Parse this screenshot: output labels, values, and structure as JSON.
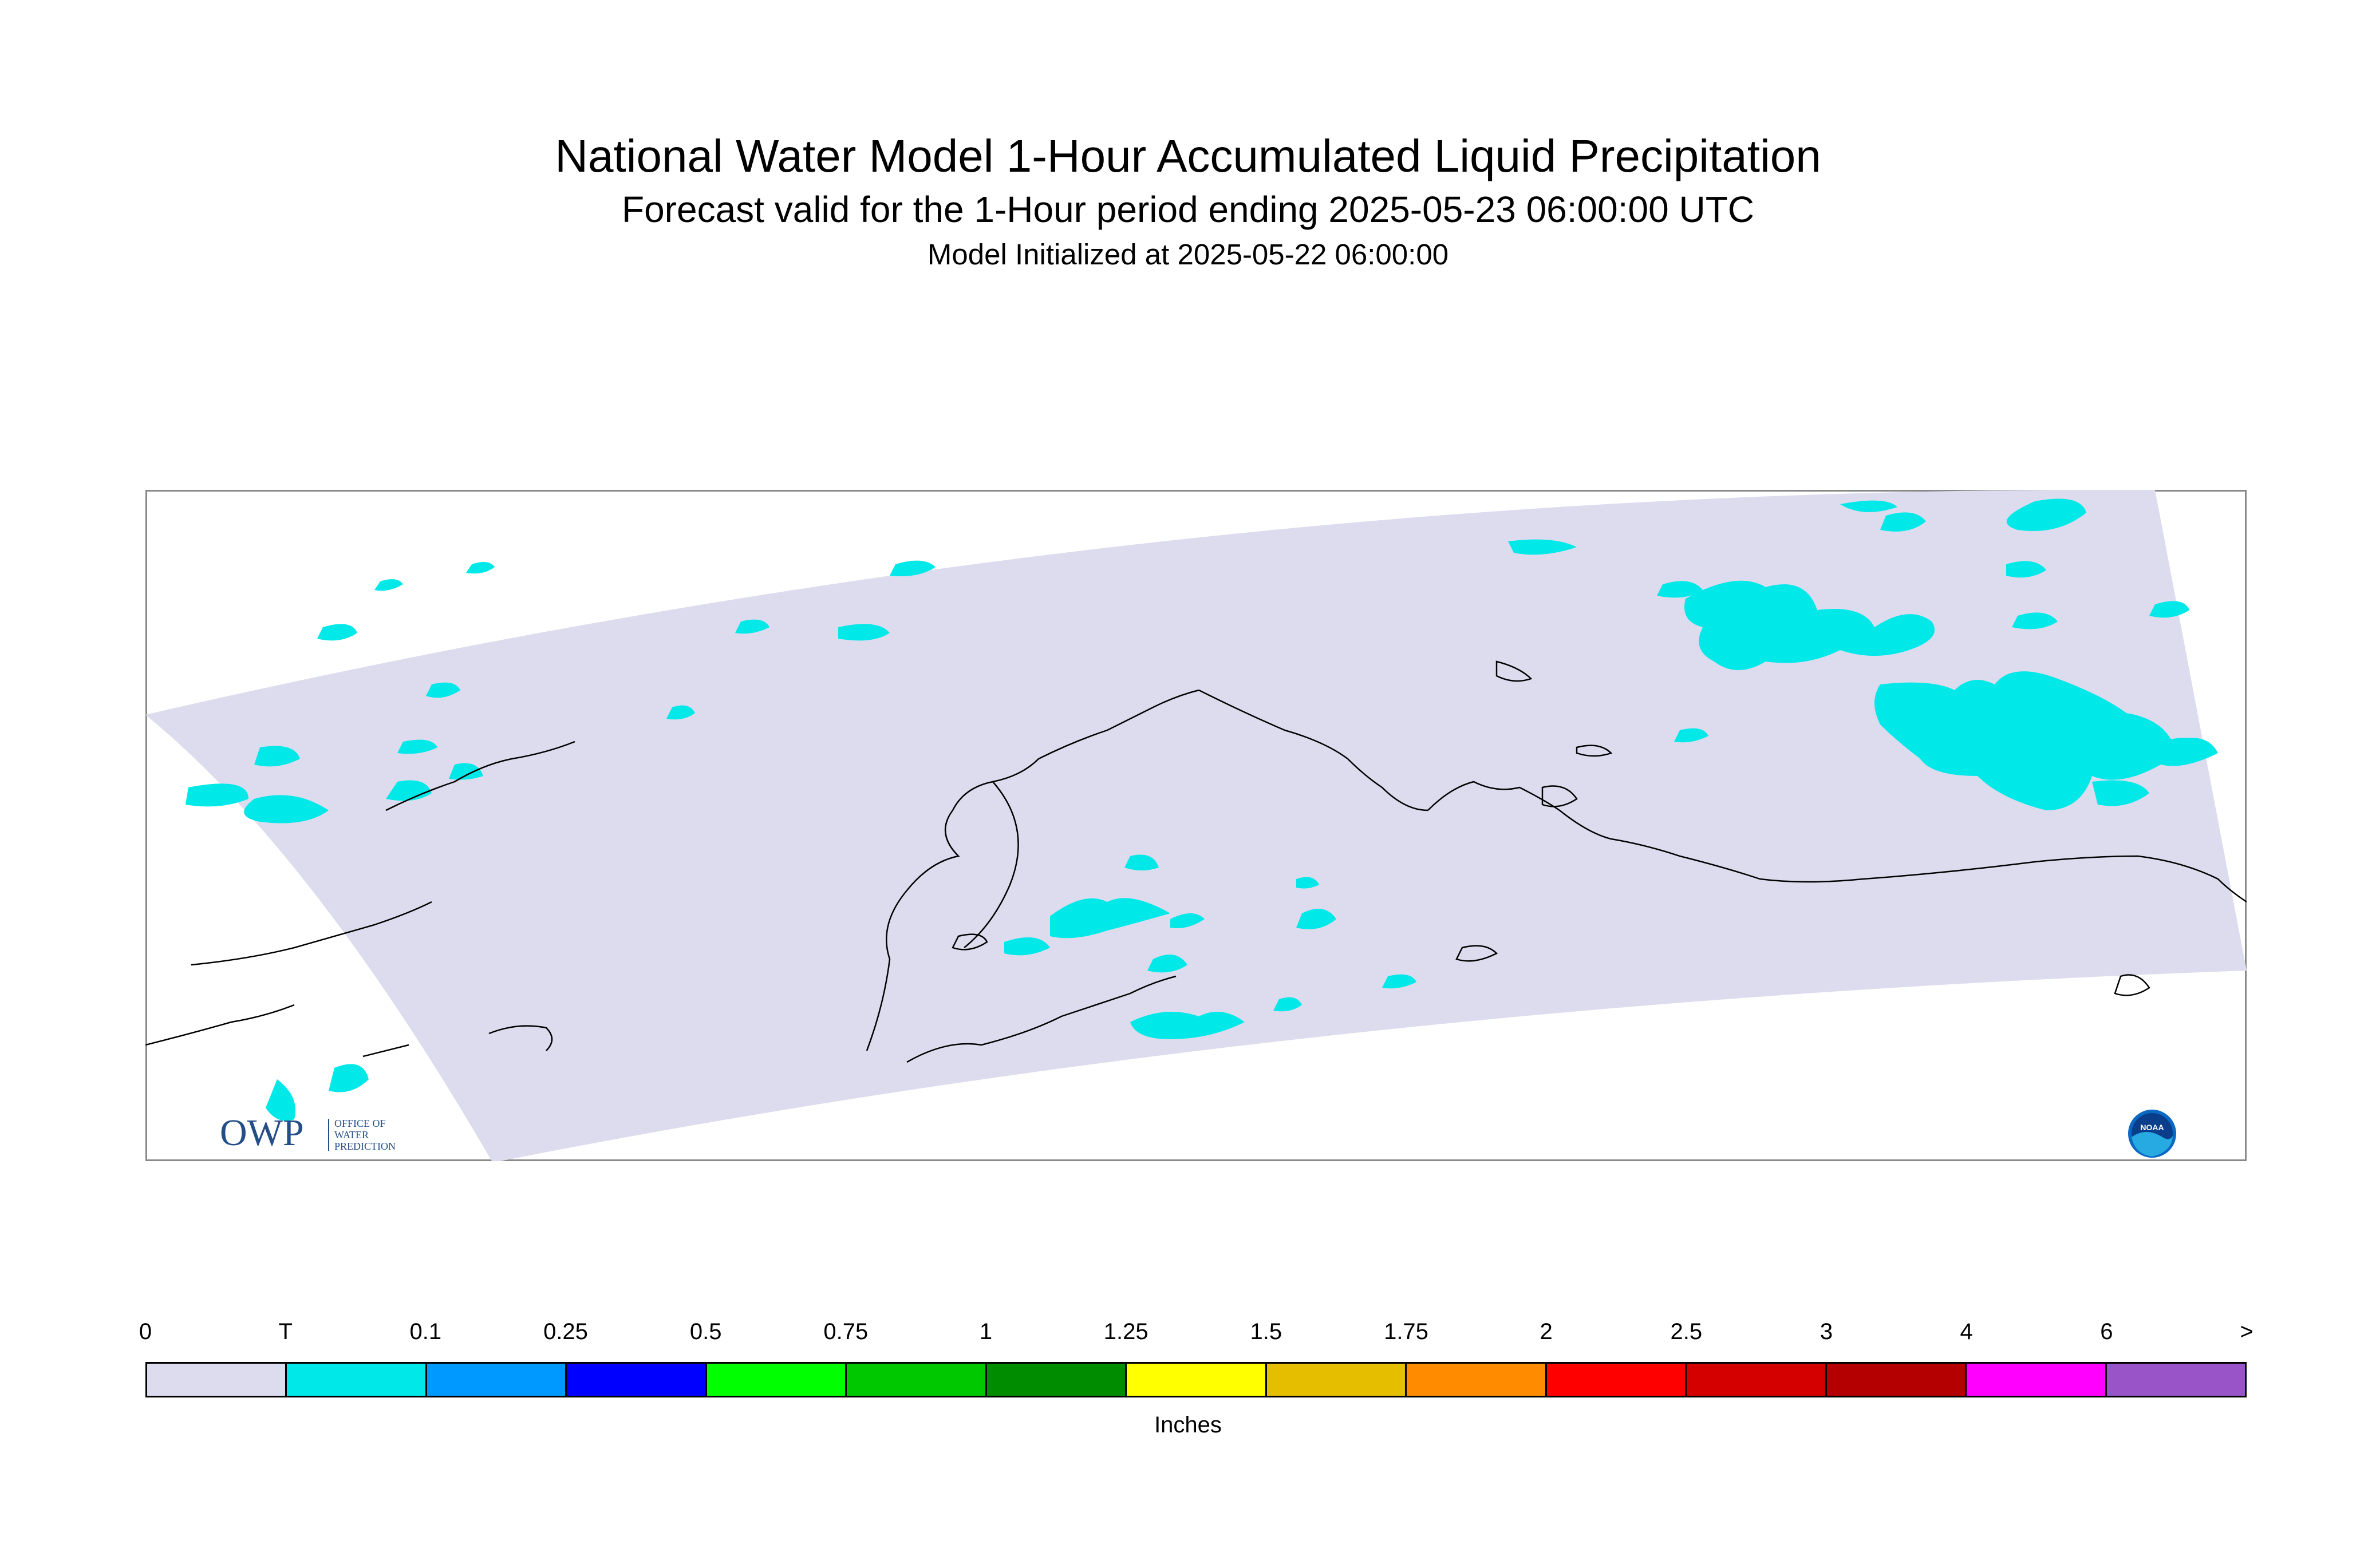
{
  "title": "National Water Model 1-Hour Accumulated Liquid Precipitation",
  "subtitle": "Forecast valid for the 1-Hour period ending 2025-05-23 06:00:00 UTC",
  "init_line": "Model Initialized at 2025-05-22 06:00:00",
  "logos": {
    "owp_mark": "OWP",
    "owp_sub": [
      "OFFICE OF",
      "WATER",
      "PREDICTION"
    ],
    "noaa": "NOAA"
  },
  "legend": {
    "units": "Inches",
    "tick_labels": [
      "0",
      "T",
      "0.1",
      "0.25",
      "0.5",
      "0.75",
      "1",
      "1.25",
      "1.5",
      "1.75",
      "2",
      "2.5",
      "3",
      "4",
      "6",
      ">"
    ],
    "colors": [
      "#dcdcee",
      "#00e8e8",
      "#0099ff",
      "#0000ff",
      "#00ff00",
      "#00c800",
      "#008c00",
      "#ffff00",
      "#e6be00",
      "#ff8c00",
      "#ff0000",
      "#d40000",
      "#b40000",
      "#ff00ff",
      "#9955c8"
    ]
  },
  "map": {
    "domain_color": "#dcdcee",
    "trace_color": "#00e8e8",
    "coast_color": "#000000",
    "region": "Alaska"
  }
}
